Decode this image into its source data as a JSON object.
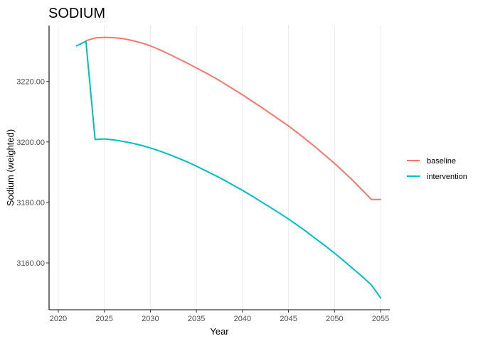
{
  "chart_data": {
    "type": "line",
    "title": "SODIUM",
    "xlabel": "Year",
    "ylabel": "Sodium (weighted)",
    "xlim": [
      2019,
      2056
    ],
    "ylim": [
      3144.5,
      3238.5
    ],
    "x_ticks": [
      2020,
      2025,
      2030,
      2035,
      2040,
      2045,
      2050,
      2055
    ],
    "x_tick_labels": [
      "2020",
      "2025",
      "2030",
      "2035",
      "2040",
      "2045",
      "2050",
      "2055"
    ],
    "y_ticks": [
      3160,
      3180,
      3200,
      3220
    ],
    "y_tick_labels": [
      "3160.00",
      "3180.00",
      "3200.00",
      "3220.00"
    ],
    "grid": "vertical-major",
    "legend_position": "right",
    "series": [
      {
        "name": "baseline",
        "color": "#F8766D",
        "x": [
          2023,
          2024,
          2025,
          2026,
          2027,
          2028,
          2029,
          2030,
          2031,
          2032,
          2033,
          2034,
          2035,
          2036,
          2037,
          2038,
          2039,
          2040,
          2041,
          2042,
          2043,
          2044,
          2045,
          2046,
          2047,
          2048,
          2049,
          2050,
          2051,
          2052,
          2053,
          2054,
          2055
        ],
        "values": [
          3233.5,
          3234.4,
          3234.6,
          3234.5,
          3234.2,
          3233.6,
          3232.8,
          3231.8,
          3230.5,
          3229.1,
          3227.6,
          3226.1,
          3224.5,
          3222.9,
          3221.2,
          3219.4,
          3217.5,
          3215.6,
          3213.6,
          3211.6,
          3209.5,
          3207.4,
          3205.3,
          3203.0,
          3200.6,
          3198.1,
          3195.5,
          3192.9,
          3190.1,
          3187.2,
          3184.1,
          3181.0,
          3181.0
        ]
      },
      {
        "name": "intervention",
        "color": "#00BFC4",
        "x": [
          2022,
          2023,
          2024,
          2025,
          2026,
          2027,
          2028,
          2029,
          2030,
          2031,
          2032,
          2033,
          2034,
          2035,
          2036,
          2037,
          2038,
          2039,
          2040,
          2041,
          2042,
          2043,
          2044,
          2045,
          2046,
          2047,
          2048,
          2049,
          2050,
          2051,
          2052,
          2053,
          2054,
          2055
        ],
        "values": [
          3231.8,
          3233.3,
          3200.8,
          3201.0,
          3200.7,
          3200.2,
          3199.6,
          3198.9,
          3198.0,
          3197.0,
          3195.9,
          3194.7,
          3193.4,
          3192.0,
          3190.5,
          3189.0,
          3187.4,
          3185.7,
          3184.0,
          3182.2,
          3180.3,
          3178.4,
          3176.5,
          3174.5,
          3172.4,
          3170.2,
          3167.9,
          3165.6,
          3163.2,
          3160.7,
          3158.1,
          3155.5,
          3152.7,
          3148.4
        ]
      }
    ]
  }
}
